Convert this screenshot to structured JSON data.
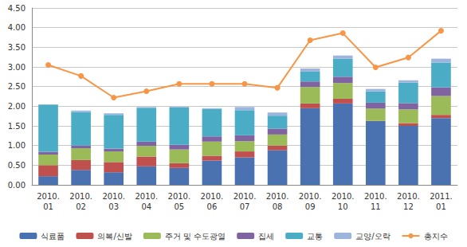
{
  "chart_data": {
    "type": "bar",
    "stacked": true,
    "grid": true,
    "legend": "bottom",
    "categories": [
      "2010.\n01",
      "2010.\n02",
      "2010.\n03",
      "2010.\n04",
      "2010.\n05",
      "2010.\n06",
      "2010.\n07",
      "2010.\n08",
      "2010.\n09",
      "2010.\n10",
      "2010.\n11",
      "2010.\n12",
      "2011.\n01"
    ],
    "ylim": [
      0,
      4.5
    ],
    "yticks": [
      {
        "value": 0,
        "label": "0.00"
      },
      {
        "value": 0.5,
        "label": "0.50"
      },
      {
        "value": 1,
        "label": "1.00"
      },
      {
        "value": 1.5,
        "label": "1.50"
      },
      {
        "value": 2,
        "label": "2.00"
      },
      {
        "value": 2.5,
        "label": "2.50"
      },
      {
        "value": 3,
        "label": "3.00"
      },
      {
        "value": 3.5,
        "label": "3.50"
      },
      {
        "value": 4,
        "label": "4.00"
      },
      {
        "value": 4.5,
        "label": "4.50"
      }
    ],
    "series": [
      {
        "name": "식료품",
        "type": "bar",
        "color": "#4a72b0",
        "values": [
          0.22,
          0.38,
          0.32,
          0.47,
          0.43,
          0.62,
          0.7,
          0.88,
          1.95,
          2.07,
          1.62,
          1.5,
          1.7
        ]
      },
      {
        "name": "의복/신발",
        "type": "bar",
        "color": "#c0504d",
        "values": [
          0.28,
          0.25,
          0.26,
          0.25,
          0.12,
          0.12,
          0.15,
          0.12,
          0.12,
          0.12,
          0.01,
          0.07,
          0.08
        ]
      },
      {
        "name": "주거 및 수도광열",
        "type": "bar",
        "color": "#9bbb59",
        "values": [
          0.27,
          0.3,
          0.27,
          0.27,
          0.35,
          0.36,
          0.26,
          0.28,
          0.42,
          0.4,
          0.31,
          0.35,
          0.48
        ]
      },
      {
        "name": "집세",
        "type": "bar",
        "color": "#8064a2",
        "values": [
          0.07,
          0.07,
          0.07,
          0.11,
          0.12,
          0.13,
          0.15,
          0.15,
          0.14,
          0.16,
          0.15,
          0.16,
          0.22
        ]
      },
      {
        "name": "교통",
        "type": "bar",
        "color": "#4bacc6",
        "values": [
          1.2,
          0.85,
          0.86,
          0.86,
          0.95,
          0.7,
          0.64,
          0.33,
          0.25,
          0.46,
          0.29,
          0.52,
          0.63
        ]
      },
      {
        "name": "교양/오락",
        "type": "bar",
        "color": "#9db5dc",
        "values": [
          0.0,
          0.04,
          0.04,
          0.02,
          0.02,
          0.02,
          0.08,
          0.08,
          0.08,
          0.08,
          0.06,
          0.06,
          0.1
        ]
      },
      {
        "name": "총지수",
        "type": "line",
        "color": "#f79646",
        "marker": "circle",
        "values": [
          3.05,
          2.77,
          2.22,
          2.38,
          2.57,
          2.57,
          2.57,
          2.47,
          3.68,
          3.86,
          2.99,
          3.24,
          3.92
        ]
      }
    ]
  }
}
